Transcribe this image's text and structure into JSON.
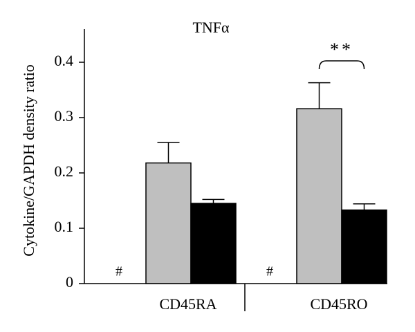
{
  "chart_data": {
    "type": "bar",
    "title": "TNFα",
    "y_label": "Cytokine/GAPDH density ratio",
    "categories": [
      "CD45RA",
      "CD45RO"
    ],
    "series": [
      {
        "color": "#ffffff",
        "values": [
          0,
          0
        ],
        "value_labels": [
          "#",
          "#"
        ]
      },
      {
        "color": "#bfbfbf",
        "values": [
          0.218,
          0.316
        ],
        "errors": [
          0.037,
          0.047
        ]
      },
      {
        "color": "#000000",
        "values": [
          0.145,
          0.133
        ],
        "errors": [
          0.007,
          0.011
        ]
      }
    ],
    "ylim": [
      0,
      0.46
    ],
    "yticks": [
      0,
      0.1,
      0.2,
      0.3,
      0.4
    ],
    "annotation": "**"
  }
}
